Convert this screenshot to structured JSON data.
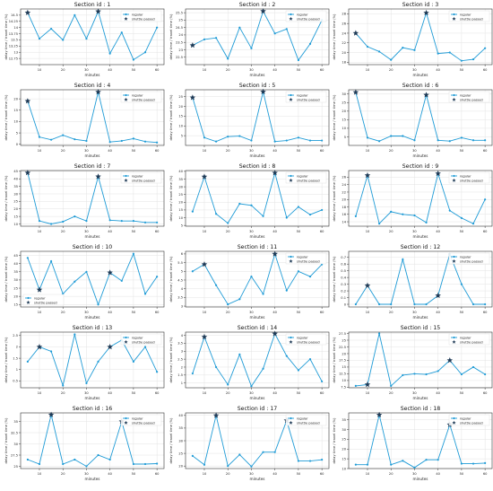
{
  "figure": {
    "xlabel": "minutes",
    "ylabel": "delay time / travel time (%)",
    "legend_regular": "regular",
    "legend_shuttle": "shuttle passed",
    "line_color": "#1f9bd6",
    "shuttle_color": "#1f3b57"
  },
  "chart_data": [
    {
      "type": "line",
      "title": "Section id : 1",
      "x": [
        5,
        10,
        15,
        20,
        25,
        30,
        35,
        40,
        45,
        50,
        55,
        60
      ],
      "values": [
        14.6,
        13.55,
        13.95,
        13.5,
        14.5,
        13.55,
        14.65,
        12.95,
        13.8,
        12.7,
        13.0,
        14.0
      ],
      "shuttle_x": [
        5,
        35
      ],
      "ylim": [
        12.5,
        14.75
      ],
      "yticks": [
        12.75,
        13.0,
        13.25,
        13.5,
        13.75,
        14.0,
        14.25,
        14.5
      ],
      "legend": "top-right"
    },
    {
      "type": "line",
      "title": "Section id : 2",
      "x": [
        5,
        10,
        15,
        20,
        25,
        30,
        35,
        40,
        45,
        50,
        55,
        60
      ],
      "values": [
        23.3,
        23.7,
        23.8,
        22.4,
        24.5,
        23.1,
        25.6,
        24.1,
        24.4,
        22.3,
        23.4,
        25.0
      ],
      "shuttle_x": [
        5,
        35
      ],
      "ylim": [
        22.0,
        25.75
      ],
      "yticks": [
        22.5,
        23.0,
        23.5,
        24.0,
        24.5,
        25.0,
        25.5
      ],
      "legend": "top-right"
    },
    {
      "type": "line",
      "title": "Section id : 3",
      "x": [
        5,
        10,
        15,
        20,
        25,
        30,
        35,
        40,
        45,
        50,
        55,
        60
      ],
      "values": [
        24.0,
        21.2,
        20.2,
        18.5,
        21.0,
        20.5,
        28.2,
        19.8,
        20.0,
        18.3,
        18.6,
        20.9
      ],
      "shuttle_x": [
        5,
        35
      ],
      "ylim": [
        17.5,
        29.0
      ],
      "yticks": [
        18,
        20,
        22,
        24,
        26,
        28
      ],
      "legend": "top-right"
    },
    {
      "type": "line",
      "title": "Section id : 4",
      "x": [
        5,
        10,
        15,
        20,
        25,
        30,
        35,
        40,
        45,
        50,
        55,
        60
      ],
      "values": [
        19.0,
        3.2,
        2.0,
        4.0,
        2.2,
        1.5,
        23.0,
        1.0,
        1.5,
        2.5,
        1.2,
        0.8
      ],
      "shuttle_x": [
        5,
        35
      ],
      "ylim": [
        -0.5,
        24.0
      ],
      "yticks": [
        0,
        5,
        10,
        15,
        20
      ],
      "legend": "top-right"
    },
    {
      "type": "line",
      "title": "Section id : 5",
      "x": [
        5,
        10,
        15,
        20,
        25,
        30,
        35,
        40,
        45,
        50,
        55,
        60
      ],
      "values": [
        24.5,
        4.0,
        2.0,
        4.5,
        4.8,
        2.5,
        27.5,
        2.0,
        2.5,
        4.0,
        2.5,
        2.5
      ],
      "shuttle_x": [
        5,
        35
      ],
      "ylim": [
        0.0,
        28.5
      ],
      "yticks": [
        5,
        10,
        15,
        20,
        25
      ],
      "legend": "top-right"
    },
    {
      "type": "line",
      "title": "Section id : 6",
      "x": [
        5,
        10,
        15,
        20,
        25,
        30,
        35,
        40,
        45,
        50,
        55,
        60
      ],
      "values": [
        31.0,
        4.5,
        2.5,
        5.5,
        5.5,
        3.0,
        29.5,
        3.0,
        2.5,
        4.5,
        3.0,
        3.0
      ],
      "shuttle_x": [
        5,
        35
      ],
      "ylim": [
        0.0,
        32.5
      ],
      "yticks": [
        5,
        10,
        15,
        20,
        25,
        30
      ],
      "legend": "top-right"
    },
    {
      "type": "line",
      "title": "Section id : 7",
      "x": [
        5,
        10,
        15,
        20,
        25,
        30,
        35,
        40,
        45,
        50,
        55,
        60
      ],
      "values": [
        44.0,
        12.0,
        10.0,
        11.5,
        15.0,
        12.0,
        41.5,
        12.5,
        12.0,
        12.0,
        11.0,
        11.0
      ],
      "shuttle_x": [
        5,
        35
      ],
      "ylim": [
        8.5,
        45.5
      ],
      "yticks": [
        10,
        15,
        20,
        25,
        30,
        35,
        40,
        45
      ],
      "legend": "top-right"
    },
    {
      "type": "line",
      "title": "Section id : 8",
      "x": [
        5,
        10,
        15,
        20,
        25,
        30,
        35,
        40,
        45,
        50,
        55,
        60
      ],
      "values": [
        14.0,
        36.5,
        12.5,
        6.5,
        19.0,
        18.0,
        11.0,
        39.0,
        10.0,
        17.0,
        12.0,
        15.0
      ],
      "shuttle_x": [
        10,
        40
      ],
      "ylim": [
        4.5,
        40.5
      ],
      "yticks": [
        5,
        10,
        15,
        20,
        25,
        30,
        35,
        40
      ],
      "legend": "top-right"
    },
    {
      "type": "line",
      "title": "Section id : 9",
      "x": [
        5,
        10,
        15,
        20,
        25,
        30,
        35,
        40,
        45,
        50,
        55,
        60
      ],
      "values": [
        15.5,
        26.5,
        13.5,
        16.7,
        16.0,
        15.7,
        13.8,
        27.0,
        17.0,
        15.0,
        13.5,
        20.0
      ],
      "shuttle_x": [
        10,
        40
      ],
      "ylim": [
        12.8,
        27.8
      ],
      "yticks": [
        14,
        16,
        18,
        20,
        22,
        24,
        26
      ],
      "legend": "top-right"
    },
    {
      "type": "line",
      "title": "Section id : 10",
      "x": [
        5,
        10,
        15,
        20,
        25,
        30,
        35,
        40,
        45,
        50,
        55,
        60
      ],
      "values": [
        43.5,
        24.0,
        41.5,
        21.5,
        29.0,
        35.0,
        15.0,
        34.5,
        29.5,
        46.0,
        21.5,
        32.0
      ],
      "shuttle_x": [
        10,
        40
      ],
      "ylim": [
        13.5,
        47.5
      ],
      "yticks": [
        15,
        20,
        25,
        30,
        35,
        40,
        45
      ],
      "legend": "bottom-left"
    },
    {
      "type": "line",
      "title": "Section id : 11",
      "x": [
        5,
        10,
        15,
        20,
        25,
        30,
        35,
        40,
        45,
        50,
        55,
        60
      ],
      "values": [
        5.0,
        5.4,
        4.2,
        3.1,
        3.4,
        4.7,
        3.7,
        6.0,
        3.9,
        5.0,
        4.7,
        5.4
      ],
      "shuttle_x": [
        10,
        40
      ],
      "ylim": [
        2.95,
        6.15
      ],
      "yticks": [
        3.0,
        3.5,
        4.0,
        4.5,
        5.0,
        5.5,
        6.0
      ],
      "legend": "top-right"
    },
    {
      "type": "line",
      "title": "Section id : 12",
      "x": [
        5,
        10,
        15,
        20,
        25,
        30,
        35,
        40,
        45,
        50,
        55,
        60
      ],
      "values": [
        0.0,
        0.28,
        0.0,
        0.0,
        0.67,
        0.0,
        0.0,
        0.13,
        0.75,
        0.3,
        0.0,
        0.0
      ],
      "shuttle_x": [
        10,
        40
      ],
      "ylim": [
        -0.04,
        0.79
      ],
      "yticks": [
        0.0,
        0.1,
        0.2,
        0.3,
        0.4,
        0.5,
        0.6,
        0.7
      ],
      "legend": "top-right"
    },
    {
      "type": "line",
      "title": "Section id : 13",
      "x": [
        5,
        10,
        15,
        20,
        25,
        30,
        35,
        40,
        45,
        50,
        55,
        60
      ],
      "values": [
        1.35,
        2.0,
        1.8,
        0.3,
        2.55,
        0.4,
        1.35,
        2.0,
        2.3,
        1.35,
        2.0,
        0.9
      ],
      "shuttle_x": [
        10,
        40
      ],
      "ylim": [
        0.2,
        2.65
      ],
      "yticks": [
        0.5,
        1.0,
        1.5,
        2.0,
        2.5
      ],
      "legend": "top-right"
    },
    {
      "type": "line",
      "title": "Section id : 14",
      "x": [
        5,
        10,
        15,
        20,
        25,
        30,
        35,
        40,
        45,
        50,
        55,
        60
      ],
      "values": [
        1.6,
        3.9,
        2.0,
        0.9,
        2.8,
        0.8,
        1.9,
        4.1,
        2.7,
        1.8,
        2.5,
        1.1
      ],
      "shuttle_x": [
        10,
        40
      ],
      "ylim": [
        0.7,
        4.2
      ],
      "yticks": [
        1.0,
        1.5,
        2.0,
        2.5,
        3.0,
        3.5,
        4.0
      ],
      "legend": "top-right"
    },
    {
      "type": "line",
      "title": "Section id : 15",
      "x": [
        5,
        10,
        15,
        20,
        25,
        30,
        35,
        40,
        45,
        50,
        55,
        60
      ],
      "values": [
        8.0,
        8.5,
        27.5,
        8.0,
        12.0,
        12.5,
        12.3,
        13.5,
        17.5,
        12.3,
        15.0,
        12.3
      ],
      "shuttle_x": [
        10,
        45
      ],
      "ylim": [
        7.3,
        28.0
      ],
      "yticks": [
        7.5,
        10.0,
        12.5,
        15.0,
        17.5,
        20.0,
        22.5,
        25.0,
        27.5
      ],
      "legend": "top-right"
    },
    {
      "type": "line",
      "title": "Section id : 16",
      "x": [
        5,
        10,
        15,
        20,
        25,
        30,
        35,
        40,
        45,
        50,
        55,
        60
      ],
      "values": [
        26.5,
        25.5,
        36.5,
        25.5,
        26.5,
        25.0,
        27.5,
        26.5,
        35.0,
        25.5,
        25.5,
        25.6
      ],
      "shuttle_x": [
        15,
        45
      ],
      "ylim": [
        24.5,
        36.9
      ],
      "yticks": [
        25.0,
        27.5,
        30.0,
        32.5,
        35.0
      ],
      "legend": "top-right"
    },
    {
      "type": "line",
      "title": "Section id : 17",
      "x": [
        5,
        10,
        15,
        20,
        25,
        30,
        35,
        40,
        45,
        50,
        55,
        60
      ],
      "values": [
        24.0,
        20.5,
        40.0,
        20.0,
        24.5,
        19.8,
        25.5,
        25.5,
        38.0,
        22.0,
        22.0,
        22.5
      ],
      "shuttle_x": [
        15,
        45
      ],
      "ylim": [
        19.0,
        41.0
      ],
      "yticks": [
        20,
        25,
        30,
        35,
        40
      ],
      "legend": "top-right"
    },
    {
      "type": "line",
      "title": "Section id : 18",
      "x": [
        5,
        10,
        15,
        20,
        25,
        30,
        35,
        40,
        45,
        50,
        55,
        60
      ],
      "values": [
        12.0,
        12.0,
        37.5,
        12.0,
        14.0,
        10.5,
        14.5,
        14.5,
        32.5,
        12.5,
        12.5,
        12.8
      ],
      "shuttle_x": [
        15,
        45
      ],
      "ylim": [
        10.0,
        38.5
      ],
      "yticks": [
        10,
        15,
        20,
        25,
        30,
        35
      ],
      "legend": "top-right"
    }
  ]
}
